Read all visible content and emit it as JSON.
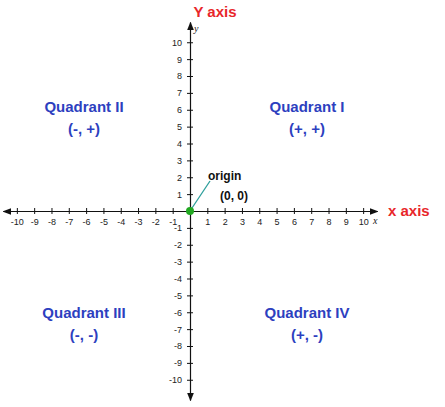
{
  "chart_data": {
    "type": "scatter",
    "x": [
      0
    ],
    "values": [
      0
    ],
    "color": "#22a822",
    "marker": "circle",
    "xlim": [
      -10.8,
      10.8
    ],
    "ylim": [
      -11.2,
      11.2
    ],
    "xticks": [
      -10,
      -9,
      -8,
      -7,
      -6,
      -5,
      -4,
      -3,
      -2,
      -1,
      1,
      2,
      3,
      4,
      5,
      6,
      7,
      8,
      9,
      10
    ],
    "yticks": [
      -10,
      -9,
      -8,
      -7,
      -6,
      -5,
      -4,
      -3,
      -2,
      -1,
      1,
      2,
      3,
      4,
      5,
      6,
      7,
      8,
      9,
      10
    ],
    "xlabel": "x",
    "ylabel": "y",
    "x_axis_name": "x axis",
    "y_axis_name": "Y axis",
    "grid": false,
    "annotations": [
      {
        "text": "origin",
        "detail": "(0, 0)"
      }
    ],
    "quadrants": [
      {
        "name": "Quadrant I",
        "signs": "(+, +)"
      },
      {
        "name": "Quadrant II",
        "signs": "(-, +)"
      },
      {
        "name": "Quadrant III",
        "signs": "(-, -)"
      },
      {
        "name": "Quadrant IV",
        "signs": "(+, -)"
      }
    ]
  }
}
